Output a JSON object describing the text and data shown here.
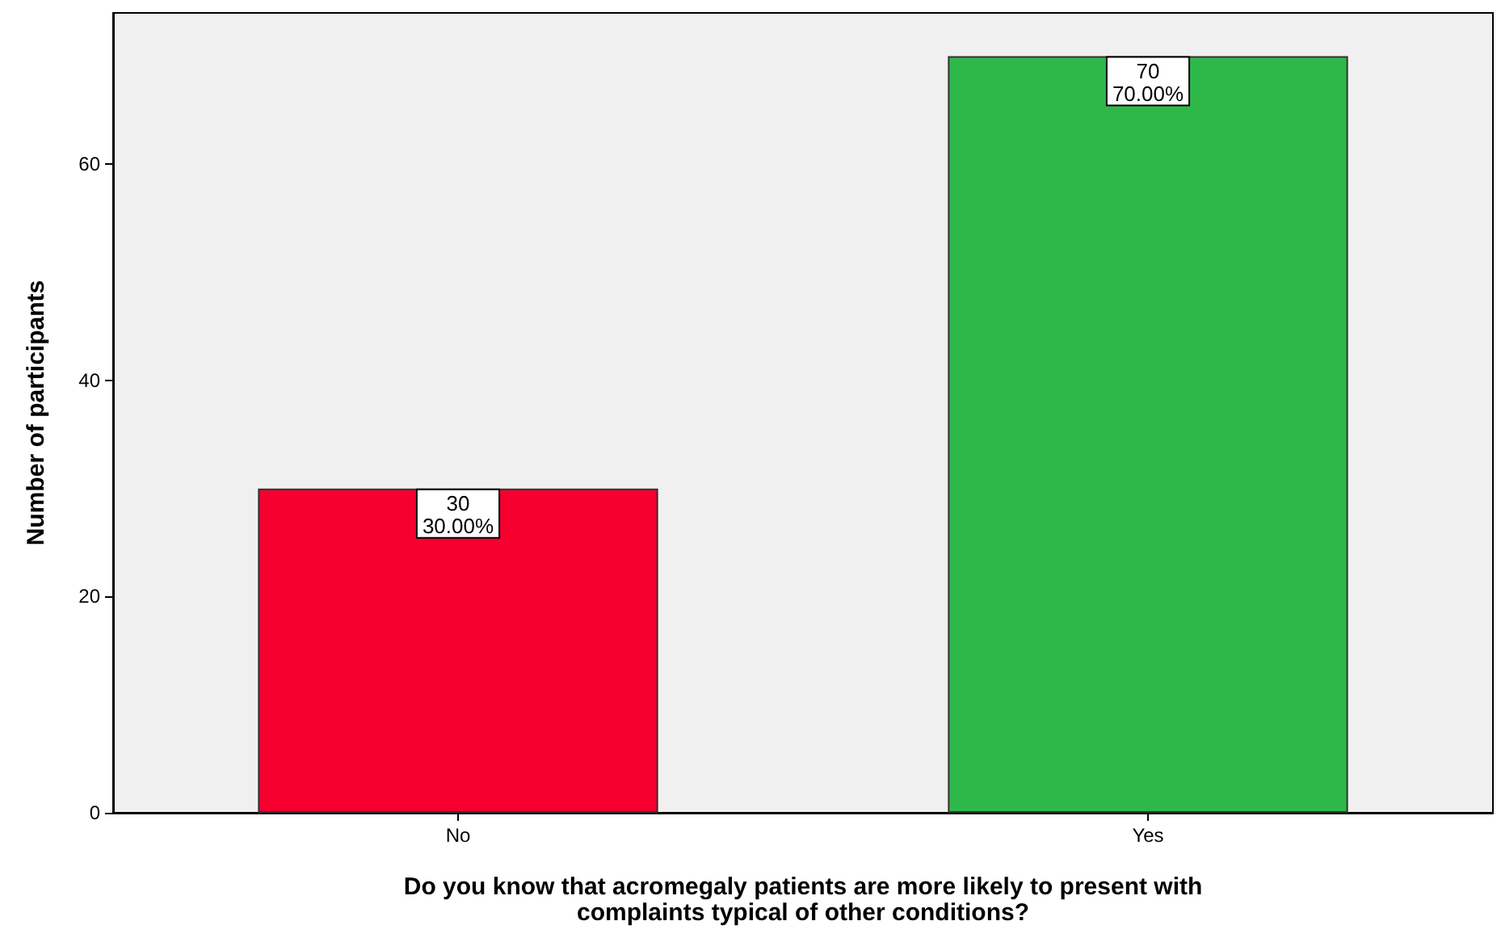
{
  "chart_data": {
    "type": "bar",
    "xlabel": "Do you know that acromegaly patients are more likely to present with\ncomplaints typical of other conditions?",
    "ylabel": "Number of participants",
    "categories": [
      "No",
      "Yes"
    ],
    "values": [
      30,
      70
    ],
    "colors": [
      "#f5002f",
      "#2fb84a"
    ],
    "value_labels": [
      "30\n30.00%",
      "70\n70.00%"
    ],
    "ylim": [
      0,
      74
    ],
    "yticks": [
      0,
      20,
      40,
      60
    ],
    "grid": false
  }
}
